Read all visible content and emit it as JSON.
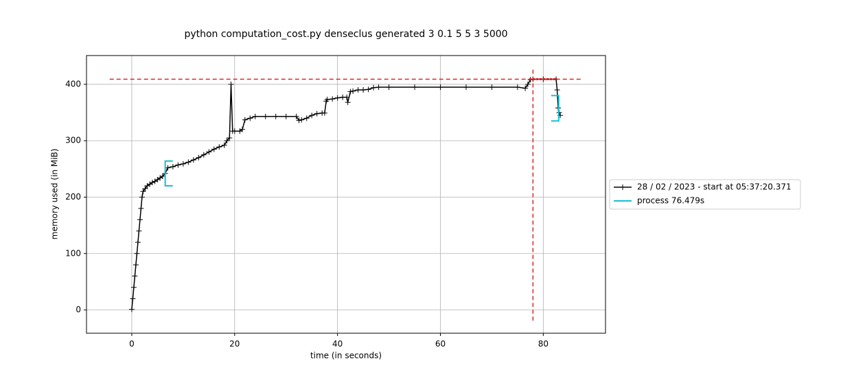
{
  "chart_data": {
    "type": "line",
    "title": "python computation_cost.py denseclus generated 3 0.1 5 5 3 5000",
    "x_label": "time (in seconds)",
    "y_label": "memory used (in MiB)",
    "xlim": [
      -8.8,
      92.1
    ],
    "ylim": [
      -41.3,
      451
    ],
    "xticks": [
      0,
      20,
      40,
      60,
      80
    ],
    "yticks": [
      0,
      100,
      200,
      300,
      400
    ],
    "grid": true,
    "legend": "center left outside",
    "x": [
      0,
      0.2,
      0.4,
      0.6,
      0.8,
      1.0,
      1.2,
      1.4,
      1.6,
      1.8,
      2.0,
      2.2,
      2.6,
      3,
      3.5,
      4,
      4.5,
      5,
      5.5,
      6,
      6.5,
      7,
      8,
      9,
      10,
      11,
      12,
      13,
      14,
      15,
      16,
      17,
      18,
      18.5,
      19,
      19.3,
      19.6,
      20,
      21,
      21.5,
      22,
      23,
      24,
      26,
      28,
      30,
      32,
      32.5,
      33,
      34,
      35,
      36,
      37,
      37.5,
      37.8,
      38,
      39,
      40,
      41,
      41.8,
      42,
      42.5,
      43,
      44,
      45,
      46,
      47,
      48,
      50,
      55,
      60,
      65,
      70,
      75,
      76.5,
      77,
      77.5,
      78,
      80,
      82.5,
      82.7,
      82.9,
      83.1,
      83.3
    ],
    "series": [
      {
        "name": "28 / 02 / 2023 - start at 05:37:20.371",
        "color": "#000000",
        "values": [
          1,
          20,
          40,
          60,
          80,
          100,
          120,
          140,
          160,
          180,
          200,
          210,
          215,
          220,
          223,
          226,
          228,
          231,
          234,
          237,
          242,
          252,
          254,
          257,
          259,
          262,
          266,
          270,
          275,
          280,
          285,
          289,
          292,
          300,
          305,
          400,
          317,
          317,
          317,
          320,
          337,
          340,
          343,
          343,
          343,
          343,
          343,
          336,
          337,
          340,
          345,
          348,
          349,
          349,
          370,
          373,
          374,
          376,
          377,
          377,
          368,
          387,
          388,
          390,
          390,
          391,
          394,
          395,
          395,
          395,
          395,
          395,
          395,
          395,
          393,
          400,
          408,
          409,
          409,
          409,
          390,
          358,
          350,
          345
        ]
      },
      {
        "name": "process 76.479s",
        "color": "#17becf",
        "bracket_x": [
          6.5,
          83
        ],
        "low": [
          220,
          335
        ],
        "high": [
          264,
          380
        ]
      }
    ],
    "max_marker": {
      "color": "#d62728",
      "x": 78,
      "y": 409,
      "xspan": [
        -4.3,
        87.6
      ],
      "yspan": [
        -19,
        429
      ],
      "peak_span": [
        77.3,
        82.7
      ]
    }
  }
}
